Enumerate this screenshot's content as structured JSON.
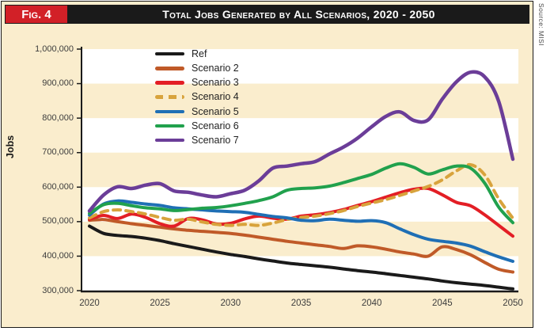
{
  "figure": {
    "label": "Fig. 4",
    "title": "Total Jobs Generated by All Scenarios, 2020 - 2050",
    "source": "Source: MISI"
  },
  "colors": {
    "badge_red": "#D22027",
    "header_black": "#1A1A1A",
    "background_cream": "#FAEDCD",
    "band_white": "#FFFFFF",
    "axis_black": "#1A1A1A",
    "tick_text_gray": "#3D3D3D"
  },
  "chart_data": {
    "type": "line",
    "title": "Total Jobs Generated by All Scenarios, 2020 - 2050",
    "xlabel": "",
    "ylabel": "Jobs",
    "xlim": [
      2020,
      2050
    ],
    "ylim": [
      300000,
      1000000
    ],
    "x_ticks": [
      "2020",
      "2025",
      "2030",
      "2035",
      "2040",
      "2045",
      "2050"
    ],
    "x_tick_years": [
      2020,
      2025,
      2030,
      2035,
      2040,
      2045,
      2050
    ],
    "y_ticks": [
      300000,
      400000,
      500000,
      600000,
      700000,
      800000,
      900000,
      1000000
    ],
    "y_tick_labels": [
      "300,000",
      "400,000",
      "500,000",
      "600,000",
      "700,000",
      "800,000",
      "900,000",
      "1,000,000"
    ],
    "grid": "horizontal alternating background bands white/cream every 100,000",
    "legend_position": "top-left inside plot",
    "x": [
      2020,
      2021,
      2022,
      2023,
      2024,
      2025,
      2026,
      2027,
      2028,
      2029,
      2030,
      2031,
      2032,
      2033,
      2034,
      2035,
      2036,
      2037,
      2038,
      2039,
      2040,
      2041,
      2042,
      2043,
      2044,
      2045,
      2046,
      2047,
      2048,
      2049,
      2050
    ],
    "series": [
      {
        "name": "Ref",
        "color": "#1A1A1A",
        "dash": false,
        "values": [
          487000,
          466000,
          460000,
          457000,
          452000,
          445000,
          436000,
          428000,
          420000,
          412000,
          405000,
          399000,
          392000,
          386000,
          380000,
          376000,
          372000,
          368000,
          363000,
          358000,
          354000,
          349000,
          344000,
          339000,
          334000,
          328000,
          323000,
          319000,
          315000,
          310000,
          305000
        ]
      },
      {
        "name": "Scenario 2",
        "color": "#C05A28",
        "dash": false,
        "values": [
          504000,
          506000,
          500000,
          494000,
          489000,
          484000,
          479000,
          475000,
          472000,
          469000,
          466000,
          461000,
          455000,
          449000,
          443000,
          438000,
          433000,
          428000,
          422000,
          430000,
          427000,
          420000,
          412000,
          406000,
          400000,
          427000,
          419000,
          404000,
          382000,
          362000,
          354000
        ]
      },
      {
        "name": "Scenario 3",
        "color": "#E31E25",
        "dash": false,
        "values": [
          507000,
          518000,
          509000,
          522000,
          512000,
          494000,
          487000,
          509000,
          505000,
          493000,
          495000,
          508000,
          516000,
          510000,
          507000,
          516000,
          520000,
          526000,
          535000,
          547000,
          558000,
          571000,
          584000,
          594000,
          596000,
          578000,
          556000,
          546000,
          520000,
          489000,
          458000
        ]
      },
      {
        "name": "Scenario 4",
        "color": "#D8A33C",
        "dash": true,
        "values": [
          511000,
          529000,
          534000,
          529000,
          522000,
          512000,
          504000,
          507000,
          499000,
          492000,
          489000,
          492000,
          489000,
          496000,
          506000,
          512000,
          516000,
          523000,
          532000,
          544000,
          554000,
          564000,
          576000,
          589000,
          602000,
          621000,
          647000,
          665000,
          636000,
          566000,
          510000
        ]
      },
      {
        "name": "Scenario 5",
        "color": "#1F6FB5",
        "dash": false,
        "values": [
          519000,
          551000,
          560000,
          556000,
          551000,
          547000,
          540000,
          537000,
          534000,
          531000,
          529000,
          527000,
          521000,
          515000,
          511000,
          504000,
          503000,
          507000,
          504000,
          501000,
          503000,
          497000,
          479000,
          462000,
          449000,
          443000,
          438000,
          429000,
          413000,
          398000,
          385000
        ]
      },
      {
        "name": "Scenario 6",
        "color": "#21A14D",
        "dash": false,
        "values": [
          524000,
          549000,
          553000,
          546000,
          540000,
          537000,
          532000,
          535000,
          539000,
          541000,
          546000,
          553000,
          561000,
          572000,
          591000,
          596000,
          598000,
          603000,
          613000,
          625000,
          637000,
          655000,
          668000,
          657000,
          638000,
          650000,
          661000,
          655000,
          612000,
          542000,
          497000
        ]
      },
      {
        "name": "Scenario 7",
        "color": "#6B3D98",
        "dash": false,
        "values": [
          531000,
          577000,
          601000,
          596000,
          606000,
          610000,
          589000,
          585000,
          577000,
          572000,
          581000,
          591000,
          618000,
          655000,
          661000,
          668000,
          674000,
          696000,
          716000,
          742000,
          775000,
          805000,
          818000,
          793000,
          795000,
          855000,
          905000,
          933000,
          920000,
          848000,
          681000
        ]
      }
    ]
  }
}
